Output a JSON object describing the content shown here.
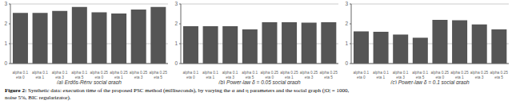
{
  "chart_data": [
    {
      "type": "bar",
      "xlabel": "(a) Erdős-Rény social graph",
      "categories": [
        "alpha 0.1\neta 0",
        "alpha 0.1\neta 1",
        "alpha 0.1\neta 3",
        "alpha 0.1\neta 5",
        "alpha 0.25\neta 0",
        "alpha 0.25\neta 1",
        "alpha 0.25\neta 3",
        "alpha 0.25\neta 5"
      ],
      "values": [
        2.55,
        2.55,
        2.65,
        2.85,
        2.58,
        2.52,
        2.72,
        2.85
      ],
      "color": "#555555",
      "ylim": [
        0,
        3
      ],
      "yticks": [
        0,
        1,
        2,
        3
      ],
      "grid": true
    },
    {
      "type": "bar",
      "xlabel": "(b) Power-law δ = 0.05 social graph",
      "categories": [
        "alpha 0.1\neta 0",
        "alpha 0.1\neta 1",
        "alpha 0.1\neta 3",
        "alpha 0.1\neta 5",
        "alpha 0.25\neta 0",
        "alpha 0.25\neta 1",
        "alpha 0.25\neta 3",
        "alpha 0.25\neta 5"
      ],
      "values": [
        1.88,
        1.88,
        1.88,
        1.72,
        2.08,
        2.08,
        2.06,
        2.08
      ],
      "color": "#555555",
      "ylim": [
        0,
        3
      ],
      "yticks": [
        0,
        1,
        2,
        3
      ],
      "grid": true
    },
    {
      "type": "bar",
      "xlabel": "(c) Power-law δ = 0.1 social graph",
      "categories": [
        "alpha 0.1\neta 0",
        "alpha 0.1\neta 1",
        "alpha 0.1\neta 3",
        "alpha 0.1\neta 5",
        "alpha 0.25\neta 0",
        "alpha 0.25\neta 1",
        "alpha 0.25\neta 3",
        "alpha 0.25\neta 5"
      ],
      "values": [
        1.62,
        1.6,
        1.46,
        1.3,
        2.2,
        2.18,
        1.97,
        1.72
      ],
      "color": "#555555",
      "ylim": [
        0,
        3
      ],
      "yticks": [
        0,
        1,
        2,
        3
      ],
      "grid": true
    }
  ],
  "annotations": [
    "Figure 2:",
    "Synthetic data: execution time of the proposed PSC method (milliseconds), by varying the α and η parameters and the social graph (|O| = 1000,\nnoise 5%, BIC regularizator)."
  ]
}
